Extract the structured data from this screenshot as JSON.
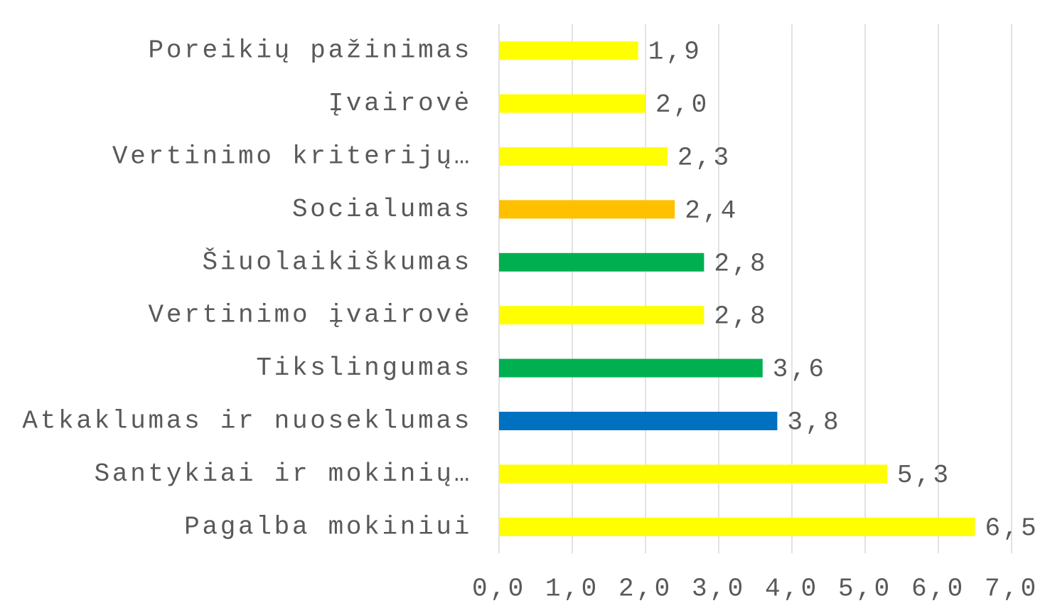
{
  "chart_data": {
    "type": "barh",
    "categories": [
      "Poreikių pažinimas",
      "Įvairovė",
      "Vertinimo kriterijų…",
      "Socialumas",
      "Šiuolaikiškumas",
      "Vertinimo įvairovė",
      "Tikslingumas",
      "Atkaklumas ir nuoseklumas",
      "Santykiai ir mokinių…",
      "Pagalba mokiniui"
    ],
    "values": [
      1.9,
      2.0,
      2.3,
      2.4,
      2.8,
      2.8,
      3.6,
      3.8,
      5.3,
      6.5
    ],
    "value_labels": [
      "1,9",
      "2,0",
      "2,3",
      "2,4",
      "2,8",
      "2,8",
      "3,6",
      "3,8",
      "5,3",
      "6,5"
    ],
    "colors": [
      "#ffff00",
      "#ffff00",
      "#ffff00",
      "#ffc000",
      "#00b050",
      "#ffff00",
      "#00b050",
      "#0070c0",
      "#ffff00",
      "#ffff00"
    ],
    "xlim": [
      0,
      7
    ],
    "xticks": [
      {
        "value": 0,
        "label": "0,0"
      },
      {
        "value": 1,
        "label": "1,0"
      },
      {
        "value": 2,
        "label": "2,0"
      },
      {
        "value": 3,
        "label": "3,0"
      },
      {
        "value": 4,
        "label": "4,0"
      },
      {
        "value": 5,
        "label": "5,0"
      },
      {
        "value": 6,
        "label": "6,0"
      },
      {
        "value": 7,
        "label": "7,0"
      }
    ],
    "grid": true
  }
}
